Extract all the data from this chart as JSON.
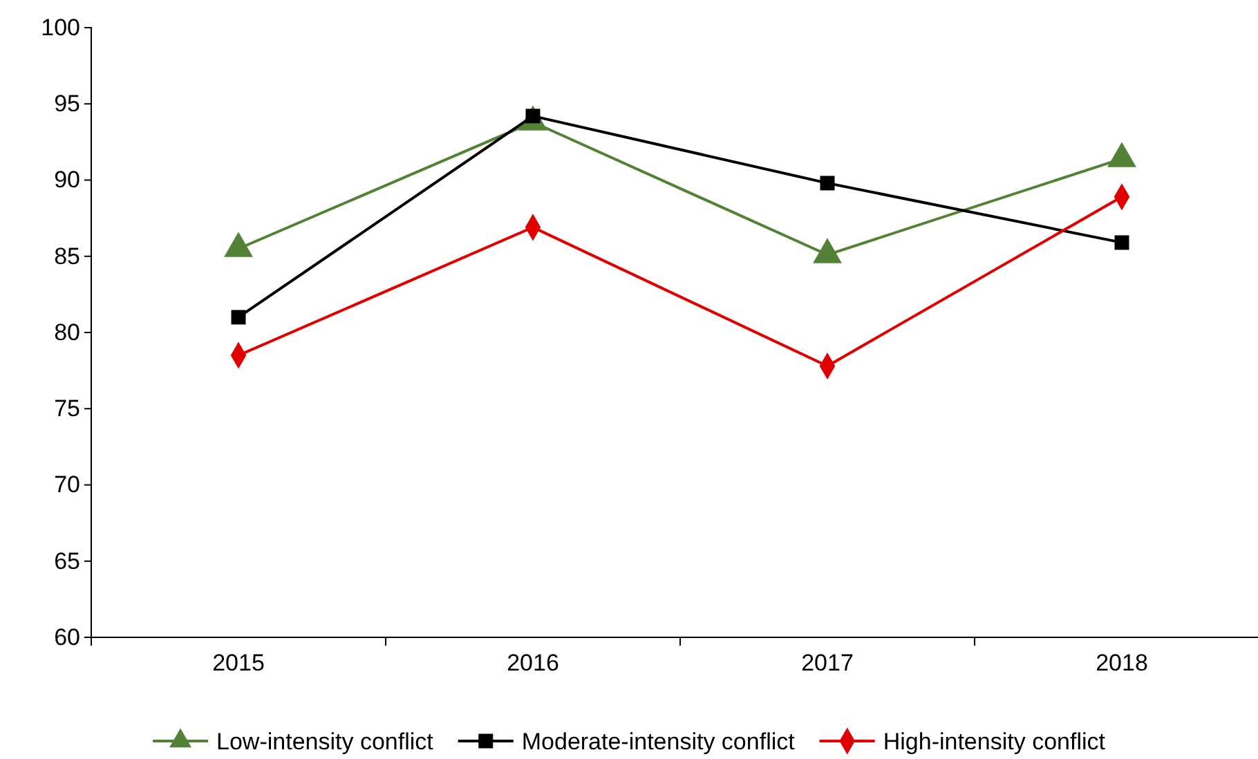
{
  "chart_data": {
    "type": "line",
    "categories": [
      "2015",
      "2016",
      "2017",
      "2018"
    ],
    "series": [
      {
        "name": "Low-intensity conflict",
        "color": "#538135",
        "marker": "triangle",
        "values": [
          85.5,
          93.8,
          85.1,
          91.4
        ]
      },
      {
        "name": "Moderate-intensity conflict",
        "color": "#000000",
        "marker": "square",
        "values": [
          81.0,
          94.2,
          89.8,
          85.9
        ]
      },
      {
        "name": "High-intensity conflict",
        "color": "#e00000",
        "marker": "diamond",
        "values": [
          78.5,
          86.9,
          77.8,
          88.9
        ]
      }
    ],
    "ylim": [
      60,
      100
    ],
    "yticks": [
      60,
      65,
      70,
      75,
      80,
      85,
      90,
      95,
      100
    ],
    "grid": false,
    "legend": "bottom",
    "line_style": "solid"
  }
}
